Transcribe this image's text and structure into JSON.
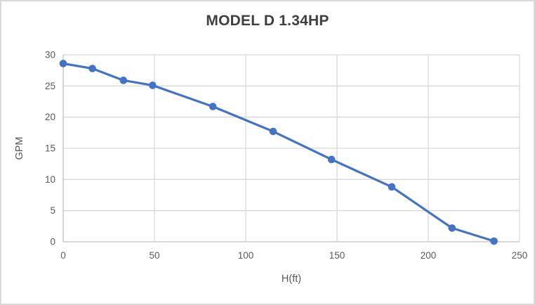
{
  "chart_data": {
    "type": "line",
    "title": "MODEL D 1.34HP",
    "xlabel": "H(ft)",
    "ylabel": "GPM",
    "series": [
      {
        "name": "MODEL D 1.34HP",
        "x": [
          0,
          16,
          33,
          49,
          82,
          115,
          147,
          180,
          213,
          236
        ],
        "y": [
          28.6,
          27.8,
          25.9,
          25.1,
          21.7,
          17.7,
          13.2,
          8.8,
          2.2,
          0.1
        ]
      }
    ],
    "xlim": [
      0,
      250
    ],
    "ylim": [
      0,
      30
    ],
    "xticks": [
      0,
      50,
      100,
      150,
      200,
      250
    ],
    "yticks": [
      0,
      5,
      10,
      15,
      20,
      25,
      30
    ],
    "grid": "on",
    "legend": "none",
    "marker": "circle",
    "colors": {
      "series": "#4472C4",
      "title_text": "#404040",
      "axis_text": "#595959",
      "gridline": "#d9d9d9",
      "axis_line": "#bfbfbf",
      "background": "#ffffff",
      "frame_border": "#d9d9d9"
    }
  }
}
